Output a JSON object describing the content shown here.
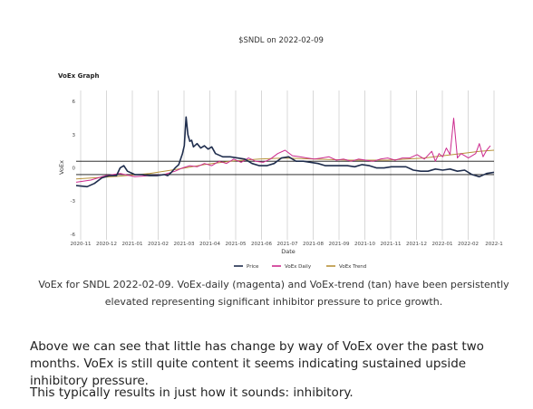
{
  "chart_data": {
    "type": "line",
    "title": "$SNDL on 2022-02-09",
    "subtitle": "VoEx Graph",
    "xlabel": "Date",
    "ylabel": "VoEx",
    "ylim": [
      -6.5,
      7
    ],
    "y_ticks": [
      "6",
      "3",
      "0",
      "-3",
      "-6"
    ],
    "x_ticks": [
      "2020-11",
      "2020-12",
      "2021-01",
      "2021-02",
      "2021-03",
      "2021-04",
      "2021-05",
      "2021-06",
      "2021-07",
      "2021-08",
      "2021-09",
      "2021-10",
      "2021-11",
      "2021-12",
      "2022-01",
      "2022-02",
      "2022-1"
    ],
    "hlines": [
      0.6,
      -0.6
    ],
    "grid": "vertical",
    "legend_position": "bottom",
    "series": [
      {
        "name": "Price",
        "color": "#1f2d4d",
        "points": [
          [
            0,
            -1.6
          ],
          [
            3,
            -1.7
          ],
          [
            5,
            -1.4
          ],
          [
            7,
            -0.9
          ],
          [
            9,
            -0.7
          ],
          [
            11,
            -0.7
          ],
          [
            12,
            0
          ],
          [
            13,
            0.2
          ],
          [
            14,
            -0.3
          ],
          [
            16,
            -0.6
          ],
          [
            18,
            -0.6
          ],
          [
            20,
            -0.7
          ],
          [
            22,
            -0.7
          ],
          [
            24,
            -0.6
          ],
          [
            25,
            -0.7
          ],
          [
            26,
            -0.4
          ],
          [
            27,
            0
          ],
          [
            28,
            0.3
          ],
          [
            29,
            1.3
          ],
          [
            29.5,
            2.0
          ],
          [
            30,
            4.6
          ],
          [
            30.5,
            3.0
          ],
          [
            31,
            2.4
          ],
          [
            31.5,
            2.5
          ],
          [
            32,
            1.9
          ],
          [
            33,
            2.2
          ],
          [
            34,
            1.8
          ],
          [
            35,
            2.0
          ],
          [
            36,
            1.7
          ],
          [
            37,
            1.9
          ],
          [
            38,
            1.3
          ],
          [
            40,
            1.0
          ],
          [
            42,
            1.0
          ],
          [
            44,
            0.9
          ],
          [
            46,
            0.8
          ],
          [
            48,
            0.4
          ],
          [
            50,
            0.2
          ],
          [
            52,
            0.2
          ],
          [
            54,
            0.4
          ],
          [
            56,
            0.9
          ],
          [
            58,
            1.0
          ],
          [
            60,
            0.6
          ],
          [
            62,
            0.6
          ],
          [
            64,
            0.5
          ],
          [
            66,
            0.4
          ],
          [
            68,
            0.2
          ],
          [
            70,
            0.2
          ],
          [
            72,
            0.2
          ],
          [
            74,
            0.2
          ],
          [
            76,
            0.1
          ],
          [
            78,
            0.3
          ],
          [
            80,
            0.2
          ],
          [
            82,
            0.0
          ],
          [
            84,
            0.0
          ],
          [
            86,
            0.1
          ],
          [
            88,
            0.1
          ],
          [
            90,
            0.1
          ],
          [
            92,
            -0.2
          ],
          [
            94,
            -0.3
          ],
          [
            96,
            -0.3
          ],
          [
            98,
            -0.1
          ],
          [
            100,
            -0.2
          ],
          [
            102,
            -0.1
          ],
          [
            104,
            -0.3
          ],
          [
            106,
            -0.2
          ],
          [
            108,
            -0.6
          ],
          [
            110,
            -0.8
          ],
          [
            112,
            -0.5
          ],
          [
            114,
            -0.4
          ]
        ]
      },
      {
        "name": "VoEx Daily",
        "color": "#cc2a8e",
        "points": [
          [
            0,
            -1.3
          ],
          [
            4,
            -1.1
          ],
          [
            8,
            -0.7
          ],
          [
            12,
            -0.5
          ],
          [
            16,
            -0.8
          ],
          [
            20,
            -0.7
          ],
          [
            24,
            -0.6
          ],
          [
            27,
            -0.3
          ],
          [
            29,
            0.0
          ],
          [
            31,
            0.2
          ],
          [
            33,
            0.1
          ],
          [
            35,
            0.4
          ],
          [
            37,
            0.2
          ],
          [
            39,
            0.6
          ],
          [
            41,
            0.4
          ],
          [
            43,
            0.8
          ],
          [
            45,
            0.5
          ],
          [
            47,
            0.9
          ],
          [
            49,
            0.6
          ],
          [
            51,
            0.5
          ],
          [
            53,
            0.8
          ],
          [
            55,
            1.3
          ],
          [
            57,
            1.6
          ],
          [
            59,
            1.1
          ],
          [
            61,
            1.0
          ],
          [
            63,
            0.9
          ],
          [
            65,
            0.8
          ],
          [
            67,
            0.9
          ],
          [
            69,
            1.0
          ],
          [
            71,
            0.7
          ],
          [
            73,
            0.8
          ],
          [
            75,
            0.6
          ],
          [
            77,
            0.8
          ],
          [
            79,
            0.7
          ],
          [
            81,
            0.6
          ],
          [
            83,
            0.8
          ],
          [
            85,
            0.9
          ],
          [
            87,
            0.7
          ],
          [
            89,
            0.9
          ],
          [
            91,
            0.9
          ],
          [
            93,
            1.2
          ],
          [
            95,
            0.8
          ],
          [
            97,
            1.5
          ],
          [
            98,
            0.6
          ],
          [
            99,
            1.3
          ],
          [
            100,
            1.0
          ],
          [
            101,
            1.8
          ],
          [
            102,
            1.2
          ],
          [
            103,
            4.5
          ],
          [
            104,
            0.9
          ],
          [
            105,
            1.3
          ],
          [
            106,
            1.1
          ],
          [
            107,
            0.9
          ],
          [
            109,
            1.3
          ],
          [
            110,
            2.2
          ],
          [
            111,
            1.0
          ],
          [
            112,
            1.6
          ],
          [
            113,
            2.0
          ]
        ]
      },
      {
        "name": "VoEx Trend",
        "color": "#b8933a",
        "points": [
          [
            0,
            -1.0
          ],
          [
            10,
            -0.8
          ],
          [
            20,
            -0.5
          ],
          [
            28,
            -0.1
          ],
          [
            35,
            0.3
          ],
          [
            42,
            0.6
          ],
          [
            50,
            0.8
          ],
          [
            57,
            0.9
          ],
          [
            65,
            0.8
          ],
          [
            75,
            0.7
          ],
          [
            85,
            0.7
          ],
          [
            95,
            0.9
          ],
          [
            100,
            1.1
          ],
          [
            105,
            1.3
          ],
          [
            110,
            1.5
          ],
          [
            114,
            1.6
          ]
        ]
      }
    ]
  },
  "caption": "VoEx for SNDL 2022-02-09. VoEx-daily (magenta) and VoEx-trend (tan) have been persistently elevated representing significant inhibitor pressure to price growth.",
  "paragraphs": [
    "Above we can see that little has change by way of VoEx over the past two months. VoEx is still quite content it seems indicating sustained upside inhibitory pressure.",
    "This typically results in just how it sounds: inhibitory."
  ]
}
